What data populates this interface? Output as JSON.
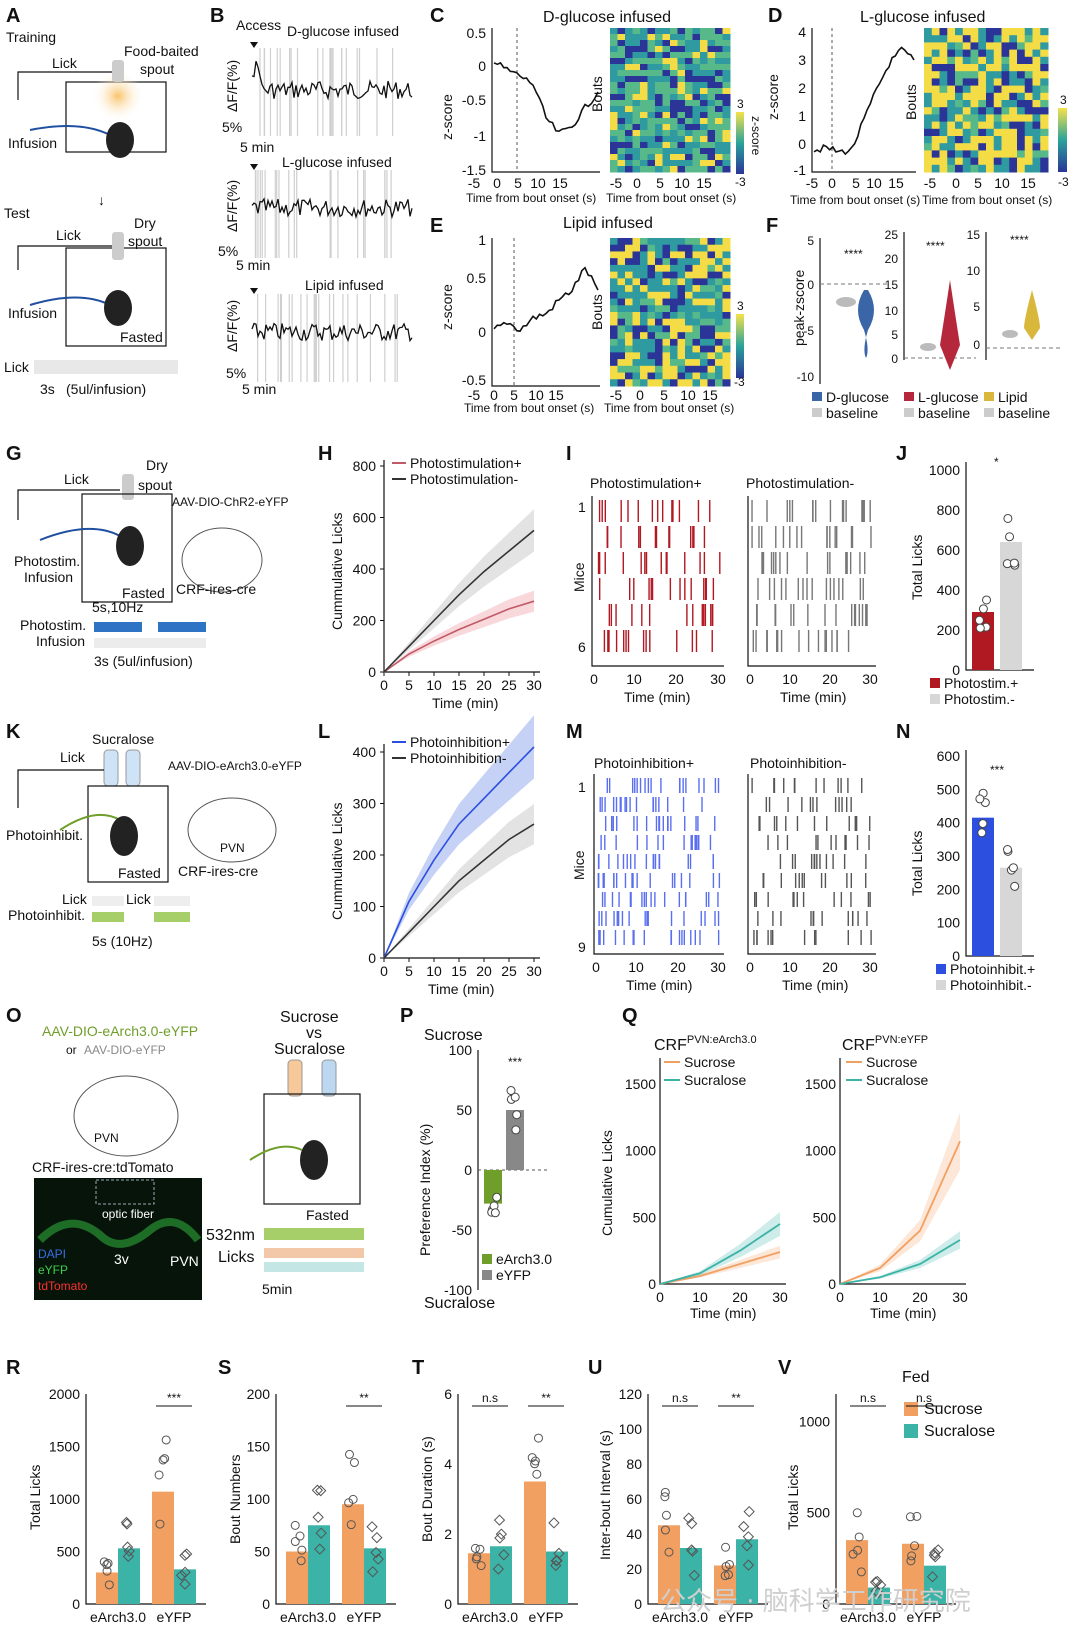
{
  "colors": {
    "dglucose": "#3a66a8",
    "lglucose": "#b5283c",
    "lipid": "#d9b73a",
    "red": "#b01822",
    "gray": "#b0b0b0",
    "blue": "#2d4fe0",
    "green": "#6f9e2a",
    "orange": "#f2a062",
    "teal": "#3bb3a6",
    "black": "#111111"
  },
  "panels": {
    "A": "A",
    "B": "B",
    "C": "C",
    "D": "D",
    "E": "E",
    "F": "F",
    "G": "G",
    "H": "H",
    "I": "I",
    "J": "J",
    "K": "K",
    "L": "L",
    "M": "M",
    "N": "N",
    "O": "O",
    "P": "P",
    "Q": "Q",
    "R": "R",
    "S": "S",
    "T": "T",
    "U": "U",
    "V": "V"
  },
  "A": {
    "training": "Training",
    "lick": "Lick",
    "spout": "Food-baited",
    "spout2": "spout",
    "infusion": "Infusion",
    "test": "Test",
    "lick2": "Lick",
    "dry": "Dry",
    "dry2": "spout",
    "infusion2": "Infusion",
    "fasted": "Fasted",
    "lickrow": "Lick",
    "timing": "3s",
    "dose": "(5ul/infusion)"
  },
  "B": {
    "access": "Access",
    "t1": "D-glucose infused",
    "t2": "L-glucose infused",
    "t3": "Lipid infused",
    "ylab": "ΔF/F(%)",
    "scale_y": "5%",
    "scale_x": "5 min"
  },
  "C": {
    "title": "D-glucose infused",
    "ylab": "z-score",
    "xlab": "Time from bout onset (s)",
    "hlab": "Bouts",
    "cb": "z-score",
    "yticks": [
      "0.5",
      "0",
      "-0.5",
      "-1",
      "-1.5"
    ],
    "xticks": [
      "-5",
      "0",
      "5",
      "10",
      "15"
    ],
    "cbmax": "3",
    "cbmin": "-3"
  },
  "D": {
    "title": "L-glucose infused",
    "ylab": "z-score",
    "xlab": "Time from bout onset (s)",
    "hlab": "Bouts",
    "cb": "z-score",
    "yticks": [
      "4",
      "3",
      "2",
      "1",
      "0",
      "-1"
    ],
    "xticks": [
      "-5",
      "0",
      "5",
      "10",
      "15"
    ],
    "cbmax": "3",
    "cbmin": "-3"
  },
  "E": {
    "title": "Lipid infused",
    "ylab": "z-score",
    "xlab": "Time from bout onset (s)",
    "hlab": "Bouts",
    "cb": "z-score",
    "yticks": [
      "1",
      "0.5",
      "0",
      "-0.5"
    ],
    "xticks": [
      "-5",
      "0",
      "5",
      "10",
      "15"
    ],
    "cbmax": "3",
    "cbmin": "-3"
  },
  "F": {
    "ylab": "peak-zscore",
    "sig": "****",
    "legend": [
      "D-glucose",
      "L-glucose",
      "Lipid"
    ],
    "baseline": "baseline",
    "y1": [
      "5",
      "0",
      "-5",
      "-10"
    ],
    "y2": [
      "25",
      "20",
      "15",
      "10",
      "5",
      "0"
    ],
    "y3": [
      "15",
      "10",
      "5",
      "0"
    ]
  },
  "G": {
    "lick": "Lick",
    "dry": "Dry",
    "dry2": "spout",
    "virus": "AAV-DIO-ChR2-eYFP",
    "photostim": "Photostim.",
    "infusion": "Infusion",
    "fasted": "Fasted",
    "crf": "CRF-ires-cre",
    "freq": "5s,10Hz",
    "row1": "Photostim.",
    "row2": "Infusion",
    "dose": "3s (5ul/infusion)"
  },
  "H": {
    "ylab": "Cummulative Licks",
    "xlab": "Time (min)",
    "legend": [
      "Photostimulation+",
      "Photostimulation-"
    ],
    "yticks": [
      "800",
      "600",
      "400",
      "200",
      "0"
    ],
    "xticks": [
      "0",
      "5",
      "10",
      "15",
      "20",
      "25",
      "30"
    ]
  },
  "I": {
    "t1": "Photostimulation+",
    "t2": "Photostimulation-",
    "ylab": "Mice",
    "m1": "1",
    "m6": "6",
    "xlab": "Time (min)",
    "xticks": [
      "0",
      "10",
      "20",
      "30"
    ]
  },
  "J": {
    "ylab": "Total Licks",
    "sig": "*",
    "yticks": [
      "1000",
      "800",
      "600",
      "400",
      "200",
      "0"
    ],
    "legend": [
      "Photostim.+",
      "Photostim.-"
    ]
  },
  "K": {
    "sucralose": "Sucralose",
    "lick": "Lick",
    "virus": "AAV-DIO-eArch3.0-eYFP",
    "photo": "Photoinhibit.",
    "fasted": "Fasted",
    "pvn": "PVN",
    "crf": "CRF-ires-cre",
    "row1": "Lick",
    "row1b": "Lick",
    "row2": "Photoinhibit.",
    "freq": "5s (10Hz)"
  },
  "L": {
    "ylab": "Cummulative Licks",
    "xlab": "Time (min)",
    "legend": [
      "Photoinhibition+",
      "Photoinhibition-"
    ],
    "yticks": [
      "400",
      "300",
      "200",
      "100",
      "0"
    ],
    "xticks": [
      "0",
      "5",
      "10",
      "15",
      "20",
      "25",
      "30"
    ]
  },
  "M": {
    "t1": "Photoinhibition+",
    "t2": "Photoinhibition-",
    "ylab": "Mice",
    "m1": "1",
    "m9": "9",
    "xlab": "Time (min)",
    "xticks": [
      "0",
      "10",
      "20",
      "30"
    ]
  },
  "N": {
    "ylab": "Total Licks",
    "sig": "***",
    "yticks": [
      "600",
      "500",
      "400",
      "300",
      "200",
      "100",
      "0"
    ],
    "legend": [
      "Photoinhibit.+",
      "Photoinhibit.-"
    ]
  },
  "O": {
    "virus1": "AAV-DIO-eArch3.0-eYFP",
    "or": "or",
    "virus2": "AAV-DIO-eYFP",
    "pvn": "PVN",
    "crf": "CRF-ires-cre:tdTomato",
    "fiber": "optic fiber",
    "v3": "3v",
    "pvn2": "PVN",
    "dapi": "DAPI",
    "eyfp": "eYFP",
    "td": "tdTomato",
    "sucrose": "Sucrose",
    "vs": "vs",
    "sucralose": "Sucralose",
    "fasted": "Fasted",
    "nm": "532nm",
    "licks": "Licks",
    "min": "5min"
  },
  "P": {
    "top": "Sucrose",
    "bottom": "Sucralose",
    "ylab": "Preference Index (%)",
    "sig": "***",
    "yticks": [
      "100",
      "50",
      "0",
      "-50",
      "-100"
    ],
    "legend": [
      "eArch3.0",
      "eYFP"
    ]
  },
  "Q": {
    "t1": "CRF",
    "t1s": "PVN:eArch3.0",
    "t2": "CRF",
    "t2s": "PVN:eYFP",
    "ylab": "Cumulative Licks",
    "xlab": "Time (min)",
    "legend": [
      "Sucrose",
      "Sucralose"
    ],
    "yticks": [
      "1500",
      "1000",
      "500",
      "0"
    ],
    "xticks": [
      "0",
      "10",
      "20",
      "30"
    ]
  },
  "R": {
    "ylab": "Total Licks",
    "yticks": [
      "2000",
      "1500",
      "1000",
      "500",
      "0"
    ],
    "sig": "***",
    "groups": [
      "eArch3.0",
      "eYFP"
    ]
  },
  "S": {
    "ylab": "Bout Numbers",
    "yticks": [
      "200",
      "150",
      "100",
      "50",
      "0"
    ],
    "sig": "**",
    "groups": [
      "eArch3.0",
      "eYFP"
    ]
  },
  "T": {
    "ylab": "Bout Duration (s)",
    "yticks": [
      "6",
      "4",
      "2",
      "0"
    ],
    "ns": "n.s",
    "sig": "**",
    "groups": [
      "eArch3.0",
      "eYFP"
    ]
  },
  "U": {
    "ylab": "Inter-bout Interval (s)",
    "yticks": [
      "120",
      "100",
      "80",
      "60",
      "40",
      "20",
      "0"
    ],
    "ns": "n.s",
    "sig": "**",
    "groups": [
      "eArch3.0",
      "eYFP"
    ]
  },
  "V": {
    "ylab": "Total Licks",
    "yticks": [
      "1000",
      "500",
      "0"
    ],
    "ns": "n.s",
    "ns2": "n.s",
    "fed": "Fed",
    "legend": [
      "Sucrose",
      "Sucralose"
    ],
    "groups": [
      "eArch3.0",
      "eYFP"
    ]
  },
  "watermark": "公众号 · 脑科学工作研究院",
  "chart_data": [
    {
      "id": "H",
      "type": "line",
      "x": [
        0,
        5,
        10,
        15,
        20,
        25,
        30
      ],
      "series": [
        {
          "name": "Photostimulation+",
          "values": [
            0,
            70,
            120,
            165,
            205,
            245,
            275
          ]
        },
        {
          "name": "Photostimulation-",
          "values": [
            0,
            100,
            200,
            300,
            390,
            470,
            550
          ]
        }
      ],
      "ylim": [
        0,
        800
      ],
      "xlim": [
        0,
        30
      ]
    },
    {
      "id": "L",
      "type": "line",
      "x": [
        0,
        5,
        10,
        15,
        20,
        25,
        30
      ],
      "series": [
        {
          "name": "Photoinhibition+",
          "values": [
            0,
            110,
            190,
            260,
            310,
            360,
            410
          ]
        },
        {
          "name": "Photoinhibition-",
          "values": [
            0,
            50,
            100,
            150,
            190,
            230,
            260
          ]
        }
      ],
      "ylim": [
        0,
        400
      ],
      "xlim": [
        0,
        30
      ]
    },
    {
      "id": "J",
      "type": "bar",
      "categories": [
        "Photostim.+",
        "Photostim.-"
      ],
      "values": [
        290,
        640
      ],
      "ylim": [
        0,
        1000
      ]
    },
    {
      "id": "N",
      "type": "bar",
      "categories": [
        "Photoinhibit.+",
        "Photoinhibit.-"
      ],
      "values": [
        415,
        265
      ],
      "ylim": [
        0,
        600
      ]
    },
    {
      "id": "P",
      "type": "bar",
      "categories": [
        "eArch3.0",
        "eYFP"
      ],
      "values": [
        -28,
        50
      ],
      "ylim": [
        -100,
        100
      ]
    },
    {
      "id": "Q1",
      "type": "line",
      "x": [
        0,
        10,
        20,
        30
      ],
      "series": [
        {
          "name": "Sucrose",
          "values": [
            0,
            60,
            150,
            240
          ]
        },
        {
          "name": "Sucralose",
          "values": [
            0,
            80,
            250,
            450
          ]
        }
      ],
      "ylim": [
        0,
        1500
      ]
    },
    {
      "id": "Q2",
      "type": "line",
      "x": [
        0,
        10,
        20,
        30
      ],
      "series": [
        {
          "name": "Sucrose",
          "values": [
            0,
            120,
            400,
            1070
          ]
        },
        {
          "name": "Sucralose",
          "values": [
            0,
            50,
            150,
            330
          ]
        }
      ],
      "ylim": [
        0,
        1500
      ]
    },
    {
      "id": "R",
      "type": "bar",
      "categories": [
        "eArch3.0",
        "eYFP"
      ],
      "series": [
        {
          "name": "Sucrose",
          "values": [
            300,
            1070
          ]
        },
        {
          "name": "Sucralose",
          "values": [
            530,
            330
          ]
        }
      ],
      "ylim": [
        0,
        2000
      ]
    },
    {
      "id": "S",
      "type": "bar",
      "categories": [
        "eArch3.0",
        "eYFP"
      ],
      "series": [
        {
          "name": "Sucrose",
          "values": [
            50,
            95
          ]
        },
        {
          "name": "Sucralose",
          "values": [
            75,
            53
          ]
        }
      ],
      "ylim": [
        0,
        200
      ]
    },
    {
      "id": "T",
      "type": "bar",
      "categories": [
        "eArch3.0",
        "eYFP"
      ],
      "series": [
        {
          "name": "Sucrose",
          "values": [
            1.45,
            3.5
          ]
        },
        {
          "name": "Sucralose",
          "values": [
            1.65,
            1.5
          ]
        }
      ],
      "ylim": [
        0,
        6
      ]
    },
    {
      "id": "U",
      "type": "bar",
      "categories": [
        "eArch3.0",
        "eYFP"
      ],
      "series": [
        {
          "name": "Sucrose",
          "values": [
            45,
            22
          ]
        },
        {
          "name": "Sucralose",
          "values": [
            32,
            37
          ]
        }
      ],
      "ylim": [
        0,
        120
      ]
    },
    {
      "id": "V",
      "type": "bar",
      "categories": [
        "eArch3.0",
        "eYFP"
      ],
      "series": [
        {
          "name": "Sucrose",
          "values": [
            350,
            330
          ]
        },
        {
          "name": "Sucralose",
          "values": [
            90,
            210
          ]
        }
      ],
      "ylim": [
        0,
        1150
      ]
    }
  ]
}
